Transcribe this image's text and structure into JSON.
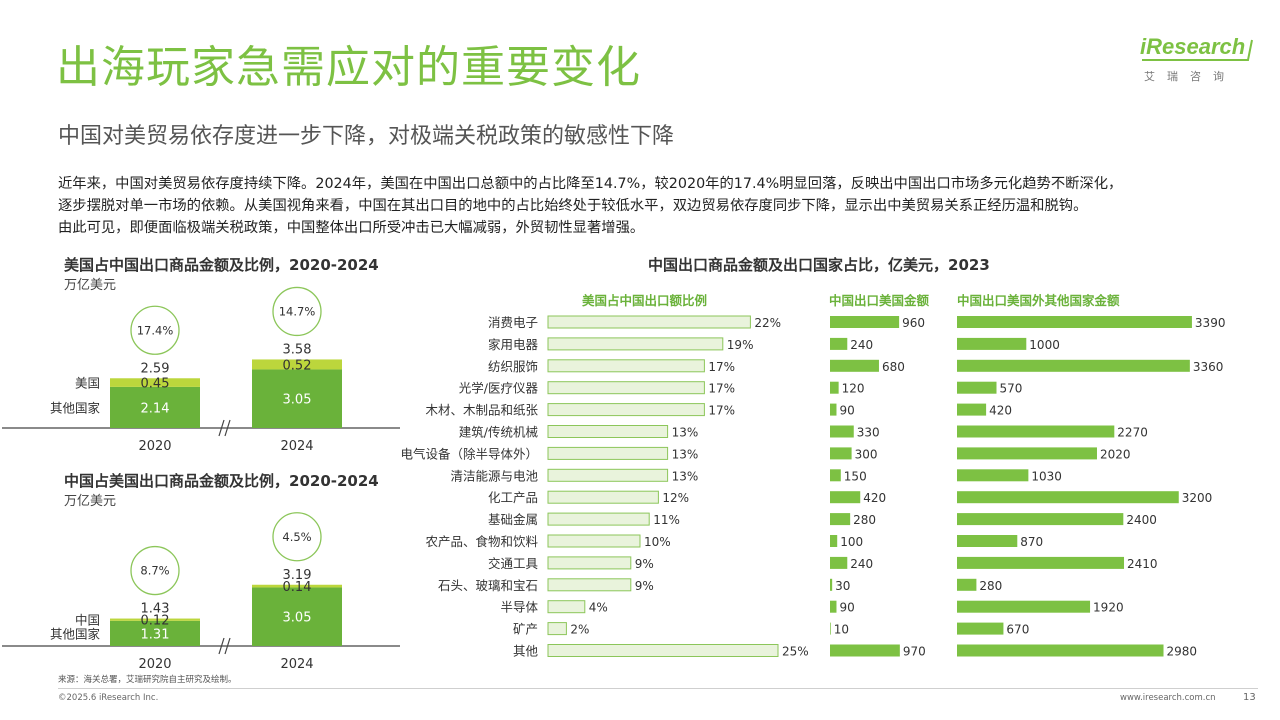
{
  "header": {
    "title": "出海玩家急需应对的重要变化",
    "subtitle": "中国对美贸易依存度进一步下降，对极端关税政策的敏感性下降",
    "paragraph": [
      "近年来，中国对美贸易依存度持续下降。2024年，美国在中国出口总额中的占比降至14.7%，较2020年的17.4%明显回落，反映出中国出口市场多元化趋势不断深化，",
      "逐步摆脱对单一市场的依赖。从美国视角来看，中国在其出口目的地中的占比始终处于较低水平，双边贸易依存度同步下降，显示出中美贸易关系正经历温和脱钩。",
      "由此可见，即便面临极端关税政策，中国整体出口所受冲击已大幅减弱，外贸韧性显著增强。"
    ]
  },
  "logo": {
    "word_i": "i",
    "word_rest": "Research",
    "cn": "艾瑞咨询"
  },
  "footer": {
    "source": "来源：海关总署，艾瑞研究院自主研究及绘制。",
    "copyright": "©2025.6 iResearch Inc.",
    "url": "www.iresearch.com.cn",
    "page": "13"
  },
  "colors": {
    "accent": "#7dc143",
    "dark_green": "#6ab23a",
    "light_green": "#bcd63c",
    "bar_light": "#e9f3dc",
    "bar_border": "#8cc65a"
  },
  "chart_data": [
    {
      "type": "bar",
      "stacked": true,
      "title": "美国占中国出口商品金额及比例，2020-2024",
      "unit": "万亿美元",
      "categories": [
        "2020",
        "2024"
      ],
      "series": [
        {
          "name": "其他国家",
          "values": [
            2.14,
            3.05
          ]
        },
        {
          "name": "美国",
          "values": [
            0.45,
            0.52
          ]
        }
      ],
      "totals": [
        2.59,
        3.58
      ],
      "share": [
        "17.4%",
        "14.7%"
      ]
    },
    {
      "type": "bar",
      "stacked": true,
      "title": "中国占美国出口商品金额及比例，2020-2024",
      "unit": "万亿美元",
      "categories": [
        "2020",
        "2024"
      ],
      "series": [
        {
          "name": "其他国家",
          "values": [
            1.31,
            3.05
          ]
        },
        {
          "name": "中国",
          "values": [
            0.12,
            0.14
          ]
        }
      ],
      "totals": [
        1.43,
        3.19
      ],
      "share": [
        "8.7%",
        "4.5%"
      ]
    },
    {
      "type": "bar",
      "orientation": "horizontal",
      "title": "中国出口商品金额及出口国家占比，亿美元，2023",
      "categories": [
        "消费电子",
        "家用电器",
        "纺织服饰",
        "光学/医疗仪器",
        "木材、木制品和纸张",
        "建筑/传统机械",
        "电气设备（除半导体外）",
        "清洁能源与电池",
        "化工产品",
        "基础金属",
        "农产品、食物和饮料",
        "交通工具",
        "石头、玻璃和宝石",
        "半导体",
        "矿产",
        "其他"
      ],
      "series": [
        {
          "name": "美国占中国出口额比例",
          "unit": "%",
          "values": [
            22,
            19,
            17,
            17,
            17,
            13,
            13,
            13,
            12,
            11,
            10,
            9,
            9,
            4,
            2,
            25
          ]
        },
        {
          "name": "中国出口美国金额",
          "values": [
            960,
            240,
            680,
            120,
            90,
            330,
            300,
            150,
            420,
            280,
            100,
            240,
            30,
            90,
            10,
            970
          ]
        },
        {
          "name": "中国出口美国外其他国家金额",
          "values": [
            3390,
            1000,
            3360,
            570,
            420,
            2270,
            2020,
            1030,
            3200,
            2400,
            870,
            2410,
            280,
            1920,
            670,
            2980
          ]
        }
      ]
    }
  ]
}
